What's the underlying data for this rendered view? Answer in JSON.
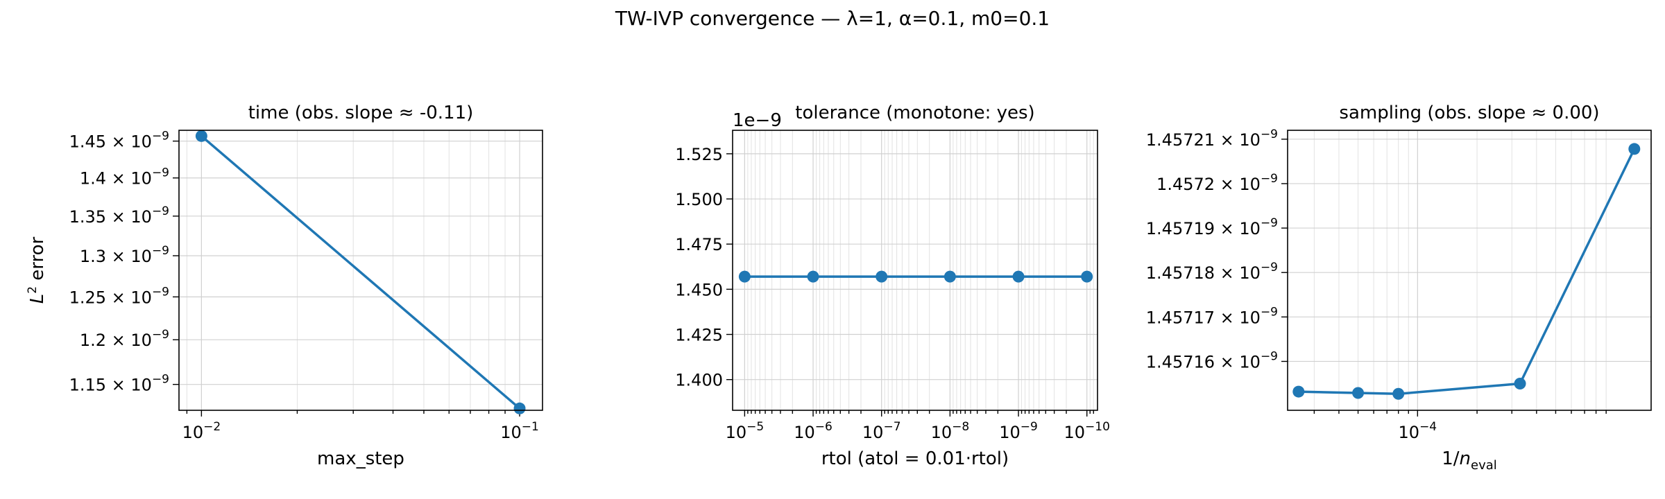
{
  "suptitle": "TW-IVP convergence — λ=1, α=0.1, m0=0.1",
  "colors": {
    "series": "#1f77b4",
    "grid": "#d0d0d0"
  },
  "chart_data": [
    {
      "type": "line",
      "title": "time (obs. slope ≈ -0.11)",
      "xlabel": "max_step",
      "ylabel": "L² error",
      "xscale": "log",
      "yscale": "log",
      "xlim": [
        0.0085,
        0.118
      ],
      "ylim": [
        1.122e-09,
        1.465e-09
      ],
      "grid": true,
      "x_major_ticks": [
        {
          "value": 0.01,
          "base": "10",
          "exp": "−2"
        },
        {
          "value": 0.1,
          "base": "10",
          "exp": "−1"
        }
      ],
      "y_ticks": [
        {
          "value": 1.45e-09,
          "mant": "1.45",
          "exp": "−9"
        },
        {
          "value": 1.4e-09,
          "mant": "1.4",
          "exp": "−9"
        },
        {
          "value": 1.35e-09,
          "mant": "1.35",
          "exp": "−9"
        },
        {
          "value": 1.3e-09,
          "mant": "1.3",
          "exp": "−9"
        },
        {
          "value": 1.25e-09,
          "mant": "1.25",
          "exp": "−9"
        },
        {
          "value": 1.2e-09,
          "mant": "1.2",
          "exp": "−9"
        },
        {
          "value": 1.15e-09,
          "mant": "1.15",
          "exp": "−9"
        }
      ],
      "series": [
        {
          "x": [
            0.01,
            0.1
          ],
          "y": [
            1.457e-09,
            1.124e-09
          ]
        }
      ]
    },
    {
      "type": "line",
      "title": "tolerance (monotone: yes)",
      "xlabel": "rtol (atol = 0.01·rtol)",
      "ylabel": "",
      "xscale": "log",
      "x_inverted": true,
      "yscale": "linear",
      "xlim": [
        1.5e-05,
        7e-11
      ],
      "ylim": [
        1.383,
        1.538
      ],
      "grid": true,
      "y_offset_text": "1e−9",
      "x_major_ticks": [
        {
          "value": 1e-05,
          "base": "10",
          "exp": "−5"
        },
        {
          "value": 1e-06,
          "base": "10",
          "exp": "−6"
        },
        {
          "value": 1e-07,
          "base": "10",
          "exp": "−7"
        },
        {
          "value": 1e-08,
          "base": "10",
          "exp": "−8"
        },
        {
          "value": 1e-09,
          "base": "10",
          "exp": "−9"
        },
        {
          "value": 1e-10,
          "base": "10",
          "exp": "−10"
        }
      ],
      "y_ticks": [
        {
          "value": 1.525,
          "label": "1.525"
        },
        {
          "value": 1.5,
          "label": "1.500"
        },
        {
          "value": 1.475,
          "label": "1.475"
        },
        {
          "value": 1.45,
          "label": "1.450"
        },
        {
          "value": 1.425,
          "label": "1.425"
        },
        {
          "value": 1.4,
          "label": "1.400"
        }
      ],
      "series": [
        {
          "x": [
            1e-05,
            1e-06,
            1e-07,
            1e-08,
            1e-09,
            1e-10
          ],
          "y": [
            1.457,
            1.457,
            1.457,
            1.457,
            1.457,
            1.457
          ]
        }
      ]
    },
    {
      "type": "line",
      "title": "sampling (obs. slope ≈ 0.00)",
      "xlabel": "1/n_eval",
      "ylabel": "",
      "xscale": "log",
      "yscale": "log",
      "xlim": [
        2.2e-05,
        0.00152
      ],
      "ylim": [
        1.457149e-09,
        1.457212e-09
      ],
      "grid": true,
      "x_major_ticks": [
        {
          "value": 0.0001,
          "base": "10",
          "exp": "−4"
        }
      ],
      "y_ticks": [
        {
          "value": 1.45721e-09,
          "mant": "1.45721",
          "exp": "−9"
        },
        {
          "value": 1.4572e-09,
          "mant": "1.4572",
          "exp": "−9"
        },
        {
          "value": 1.45719e-09,
          "mant": "1.45719",
          "exp": "−9"
        },
        {
          "value": 1.45718e-09,
          "mant": "1.45718",
          "exp": "−9"
        },
        {
          "value": 1.45717e-09,
          "mant": "1.45717",
          "exp": "−9"
        },
        {
          "value": 1.45716e-09,
          "mant": "1.45716",
          "exp": "−9"
        }
      ],
      "series": [
        {
          "x": [
            2.5e-05,
            5e-05,
            8e-05,
            0.00033,
            0.00125
          ],
          "y": [
            1.4571532e-09,
            1.4571529e-09,
            1.4571527e-09,
            1.457155e-09,
            1.4572078e-09
          ]
        }
      ]
    }
  ]
}
